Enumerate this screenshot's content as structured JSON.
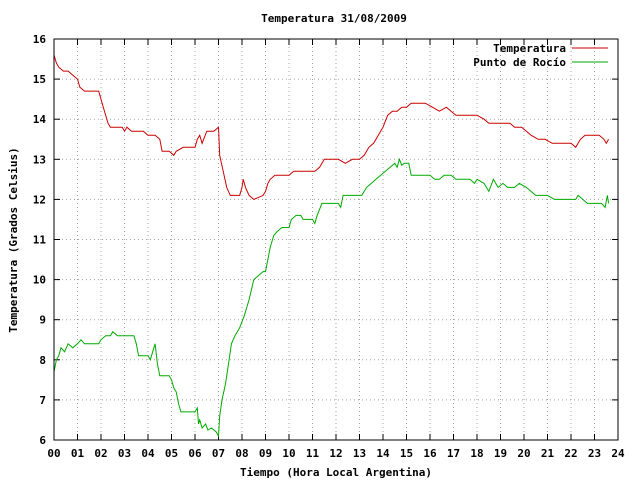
{
  "chart_data": {
    "type": "line",
    "title": "Temperatura 31/08/2009",
    "xlabel": "Tiempo (Hora Local Argentina)",
    "ylabel": "Temperatura (Grados Celsius)",
    "xlim": [
      0,
      24
    ],
    "ylim": [
      6,
      16
    ],
    "x_ticks": [
      "00",
      "01",
      "02",
      "03",
      "04",
      "05",
      "06",
      "07",
      "08",
      "09",
      "10",
      "11",
      "12",
      "13",
      "14",
      "15",
      "16",
      "17",
      "18",
      "19",
      "20",
      "21",
      "22",
      "23",
      "24"
    ],
    "y_ticks": [
      "6",
      "7",
      "8",
      "9",
      "10",
      "11",
      "12",
      "13",
      "14",
      "15",
      "16"
    ],
    "grid": true,
    "legend_position": "top-right",
    "series": [
      {
        "name": "Temperatura",
        "color": "#cc0000",
        "points": [
          [
            0.0,
            15.6
          ],
          [
            0.1,
            15.4
          ],
          [
            0.2,
            15.3
          ],
          [
            0.4,
            15.2
          ],
          [
            0.6,
            15.2
          ],
          [
            0.8,
            15.1
          ],
          [
            1.0,
            15.0
          ],
          [
            1.1,
            14.8
          ],
          [
            1.3,
            14.7
          ],
          [
            1.6,
            14.7
          ],
          [
            1.9,
            14.7
          ],
          [
            2.1,
            14.3
          ],
          [
            2.3,
            13.9
          ],
          [
            2.4,
            13.8
          ],
          [
            2.7,
            13.8
          ],
          [
            2.9,
            13.8
          ],
          [
            3.0,
            13.7
          ],
          [
            3.1,
            13.8
          ],
          [
            3.3,
            13.7
          ],
          [
            3.6,
            13.7
          ],
          [
            3.8,
            13.7
          ],
          [
            4.0,
            13.6
          ],
          [
            4.3,
            13.6
          ],
          [
            4.5,
            13.5
          ],
          [
            4.6,
            13.2
          ],
          [
            4.9,
            13.2
          ],
          [
            5.1,
            13.1
          ],
          [
            5.2,
            13.2
          ],
          [
            5.5,
            13.3
          ],
          [
            5.8,
            13.3
          ],
          [
            6.0,
            13.3
          ],
          [
            6.1,
            13.5
          ],
          [
            6.2,
            13.6
          ],
          [
            6.3,
            13.4
          ],
          [
            6.5,
            13.7
          ],
          [
            6.8,
            13.7
          ],
          [
            7.0,
            13.8
          ],
          [
            7.05,
            13.1
          ],
          [
            7.2,
            12.7
          ],
          [
            7.35,
            12.3
          ],
          [
            7.5,
            12.1
          ],
          [
            7.7,
            12.1
          ],
          [
            7.9,
            12.1
          ],
          [
            8.0,
            12.3
          ],
          [
            8.05,
            12.5
          ],
          [
            8.15,
            12.3
          ],
          [
            8.3,
            12.1
          ],
          [
            8.5,
            12.0
          ],
          [
            8.7,
            12.05
          ],
          [
            8.9,
            12.1
          ],
          [
            9.0,
            12.2
          ],
          [
            9.1,
            12.4
          ],
          [
            9.2,
            12.5
          ],
          [
            9.4,
            12.6
          ],
          [
            9.7,
            12.6
          ],
          [
            10.0,
            12.6
          ],
          [
            10.2,
            12.7
          ],
          [
            10.5,
            12.7
          ],
          [
            10.8,
            12.7
          ],
          [
            11.1,
            12.7
          ],
          [
            11.3,
            12.8
          ],
          [
            11.5,
            13.0
          ],
          [
            11.8,
            13.0
          ],
          [
            12.1,
            13.0
          ],
          [
            12.4,
            12.9
          ],
          [
            12.7,
            13.0
          ],
          [
            13.0,
            13.0
          ],
          [
            13.2,
            13.1
          ],
          [
            13.4,
            13.3
          ],
          [
            13.6,
            13.4
          ],
          [
            13.8,
            13.6
          ],
          [
            14.0,
            13.8
          ],
          [
            14.2,
            14.1
          ],
          [
            14.4,
            14.2
          ],
          [
            14.6,
            14.2
          ],
          [
            14.8,
            14.3
          ],
          [
            15.0,
            14.3
          ],
          [
            15.2,
            14.4
          ],
          [
            15.5,
            14.4
          ],
          [
            15.8,
            14.4
          ],
          [
            16.1,
            14.3
          ],
          [
            16.4,
            14.2
          ],
          [
            16.7,
            14.3
          ],
          [
            16.9,
            14.2
          ],
          [
            17.1,
            14.1
          ],
          [
            17.4,
            14.1
          ],
          [
            17.7,
            14.1
          ],
          [
            18.0,
            14.1
          ],
          [
            18.3,
            14.0
          ],
          [
            18.5,
            13.9
          ],
          [
            18.8,
            13.9
          ],
          [
            19.1,
            13.9
          ],
          [
            19.4,
            13.9
          ],
          [
            19.6,
            13.8
          ],
          [
            19.9,
            13.8
          ],
          [
            20.1,
            13.7
          ],
          [
            20.3,
            13.6
          ],
          [
            20.6,
            13.5
          ],
          [
            20.9,
            13.5
          ],
          [
            21.2,
            13.4
          ],
          [
            21.5,
            13.4
          ],
          [
            21.8,
            13.4
          ],
          [
            22.0,
            13.4
          ],
          [
            22.2,
            13.3
          ],
          [
            22.4,
            13.5
          ],
          [
            22.6,
            13.6
          ],
          [
            22.9,
            13.6
          ],
          [
            23.2,
            13.6
          ],
          [
            23.4,
            13.5
          ],
          [
            23.5,
            13.4
          ],
          [
            23.6,
            13.5
          ]
        ]
      },
      {
        "name": "Punto de Rocío",
        "color": "#00aa00",
        "points": [
          [
            0.0,
            7.7
          ],
          [
            0.1,
            8.0
          ],
          [
            0.2,
            8.1
          ],
          [
            0.3,
            8.3
          ],
          [
            0.45,
            8.2
          ],
          [
            0.6,
            8.4
          ],
          [
            0.8,
            8.3
          ],
          [
            1.0,
            8.4
          ],
          [
            1.15,
            8.5
          ],
          [
            1.3,
            8.4
          ],
          [
            1.6,
            8.4
          ],
          [
            1.9,
            8.4
          ],
          [
            2.0,
            8.5
          ],
          [
            2.2,
            8.6
          ],
          [
            2.4,
            8.6
          ],
          [
            2.5,
            8.7
          ],
          [
            2.7,
            8.6
          ],
          [
            3.0,
            8.6
          ],
          [
            3.2,
            8.6
          ],
          [
            3.4,
            8.6
          ],
          [
            3.5,
            8.4
          ],
          [
            3.6,
            8.1
          ],
          [
            3.8,
            8.1
          ],
          [
            4.0,
            8.1
          ],
          [
            4.1,
            8.0
          ],
          [
            4.2,
            8.2
          ],
          [
            4.3,
            8.4
          ],
          [
            4.4,
            7.9
          ],
          [
            4.5,
            7.6
          ],
          [
            4.7,
            7.6
          ],
          [
            4.9,
            7.6
          ],
          [
            5.0,
            7.5
          ],
          [
            5.1,
            7.3
          ],
          [
            5.2,
            7.2
          ],
          [
            5.3,
            6.9
          ],
          [
            5.4,
            6.7
          ],
          [
            5.6,
            6.7
          ],
          [
            5.8,
            6.7
          ],
          [
            6.0,
            6.7
          ],
          [
            6.1,
            6.8
          ],
          [
            6.15,
            6.4
          ],
          [
            6.2,
            6.5
          ],
          [
            6.3,
            6.3
          ],
          [
            6.45,
            6.4
          ],
          [
            6.55,
            6.25
          ],
          [
            6.7,
            6.3
          ],
          [
            6.9,
            6.2
          ],
          [
            7.0,
            6.1
          ],
          [
            7.05,
            6.6
          ],
          [
            7.15,
            7.0
          ],
          [
            7.3,
            7.4
          ],
          [
            7.45,
            8.0
          ],
          [
            7.55,
            8.4
          ],
          [
            7.7,
            8.6
          ],
          [
            7.9,
            8.8
          ],
          [
            8.1,
            9.1
          ],
          [
            8.3,
            9.5
          ],
          [
            8.5,
            10.0
          ],
          [
            8.7,
            10.1
          ],
          [
            8.9,
            10.2
          ],
          [
            9.0,
            10.2
          ],
          [
            9.1,
            10.5
          ],
          [
            9.2,
            10.8
          ],
          [
            9.35,
            11.1
          ],
          [
            9.5,
            11.2
          ],
          [
            9.7,
            11.3
          ],
          [
            9.9,
            11.3
          ],
          [
            10.0,
            11.3
          ],
          [
            10.1,
            11.5
          ],
          [
            10.3,
            11.6
          ],
          [
            10.5,
            11.6
          ],
          [
            10.6,
            11.5
          ],
          [
            10.8,
            11.5
          ],
          [
            11.0,
            11.5
          ],
          [
            11.1,
            11.4
          ],
          [
            11.2,
            11.6
          ],
          [
            11.4,
            11.9
          ],
          [
            11.6,
            11.9
          ],
          [
            11.8,
            11.9
          ],
          [
            12.0,
            11.9
          ],
          [
            12.1,
            11.9
          ],
          [
            12.2,
            11.8
          ],
          [
            12.3,
            12.1
          ],
          [
            12.5,
            12.1
          ],
          [
            12.8,
            12.1
          ],
          [
            13.1,
            12.1
          ],
          [
            13.3,
            12.3
          ],
          [
            13.5,
            12.4
          ],
          [
            13.7,
            12.5
          ],
          [
            13.9,
            12.6
          ],
          [
            14.1,
            12.7
          ],
          [
            14.3,
            12.8
          ],
          [
            14.5,
            12.9
          ],
          [
            14.6,
            12.8
          ],
          [
            14.7,
            13.0
          ],
          [
            14.8,
            12.85
          ],
          [
            14.9,
            12.9
          ],
          [
            15.1,
            12.9
          ],
          [
            15.2,
            12.6
          ],
          [
            15.4,
            12.6
          ],
          [
            15.7,
            12.6
          ],
          [
            16.0,
            12.6
          ],
          [
            16.2,
            12.5
          ],
          [
            16.4,
            12.5
          ],
          [
            16.6,
            12.6
          ],
          [
            16.9,
            12.6
          ],
          [
            17.1,
            12.5
          ],
          [
            17.4,
            12.5
          ],
          [
            17.7,
            12.5
          ],
          [
            17.9,
            12.4
          ],
          [
            18.0,
            12.5
          ],
          [
            18.3,
            12.4
          ],
          [
            18.5,
            12.2
          ],
          [
            18.7,
            12.5
          ],
          [
            18.9,
            12.3
          ],
          [
            19.1,
            12.4
          ],
          [
            19.3,
            12.3
          ],
          [
            19.6,
            12.3
          ],
          [
            19.8,
            12.4
          ],
          [
            20.1,
            12.3
          ],
          [
            20.3,
            12.2
          ],
          [
            20.5,
            12.1
          ],
          [
            20.8,
            12.1
          ],
          [
            21.0,
            12.1
          ],
          [
            21.3,
            12.0
          ],
          [
            21.6,
            12.0
          ],
          [
            21.9,
            12.0
          ],
          [
            22.2,
            12.0
          ],
          [
            22.3,
            12.1
          ],
          [
            22.5,
            12.0
          ],
          [
            22.7,
            11.9
          ],
          [
            23.0,
            11.9
          ],
          [
            23.3,
            11.9
          ],
          [
            23.45,
            11.8
          ],
          [
            23.55,
            12.1
          ],
          [
            23.6,
            11.9
          ]
        ]
      }
    ]
  }
}
